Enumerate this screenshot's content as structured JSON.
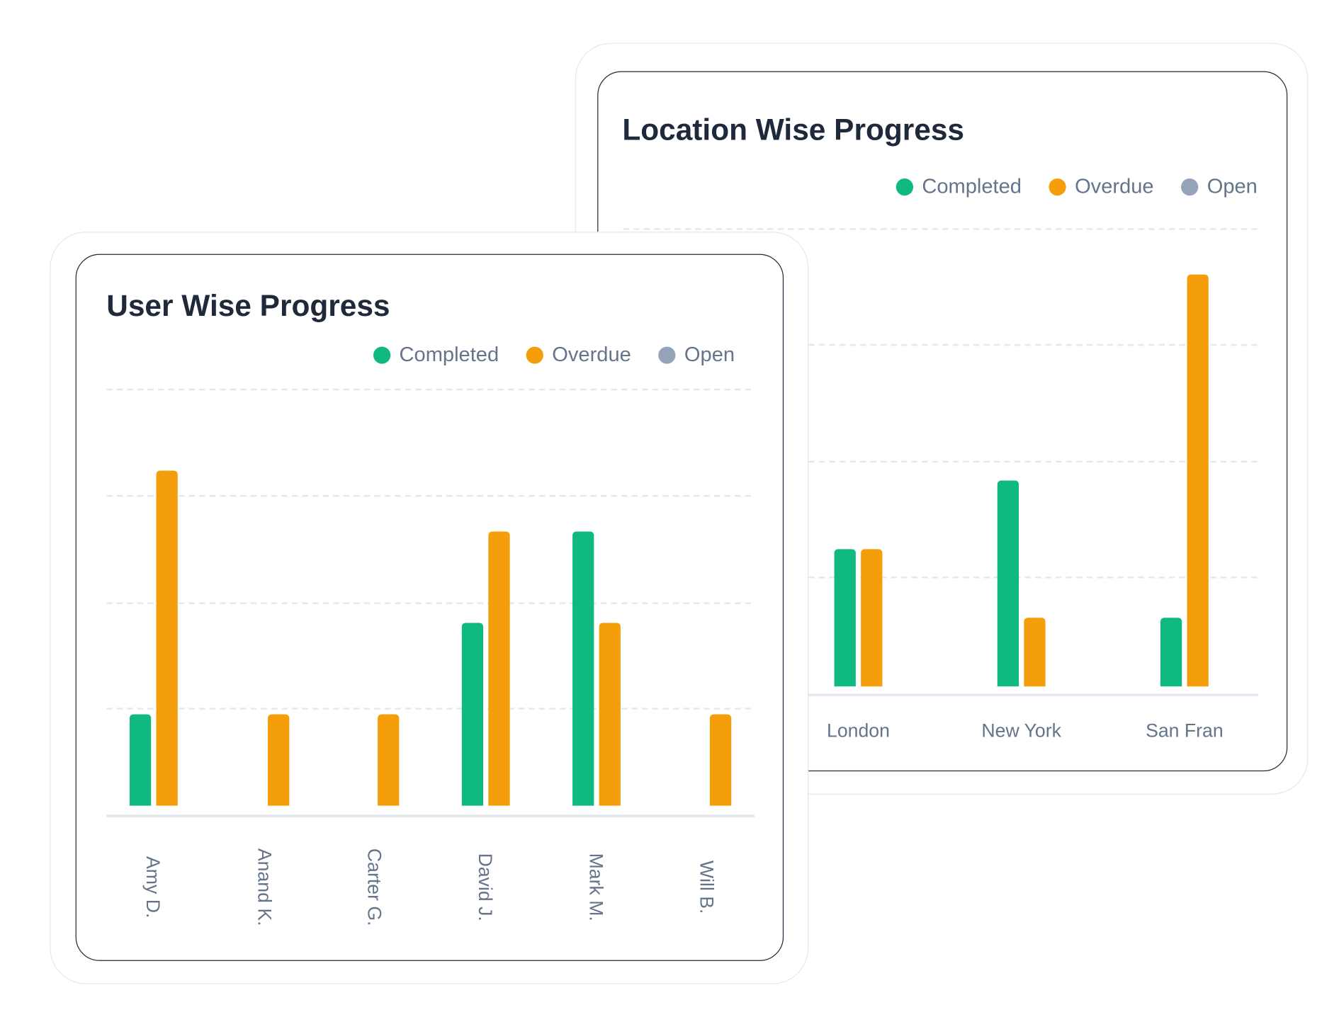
{
  "colors": {
    "completed": "#10b981",
    "overdue": "#f59e0b",
    "open": "#94a3b8",
    "grid": "#e2e8f0",
    "title": "#1e293b",
    "label": "#64748b"
  },
  "legend": [
    "Completed",
    "Overdue",
    "Open"
  ],
  "chart_data": [
    {
      "type": "bar",
      "title": "Location Wise Progress",
      "categories": [
        "London",
        "New York",
        "San Fran"
      ],
      "series": [
        {
          "name": "Completed",
          "values": [
            2,
            3,
            1
          ]
        },
        {
          "name": "Overdue",
          "values": [
            2,
            1,
            6
          ]
        },
        {
          "name": "Open",
          "values": [
            0,
            0,
            0
          ]
        }
      ],
      "grid": true,
      "legend_position": "top-right"
    },
    {
      "type": "bar",
      "title": "User Wise Progress",
      "categories": [
        "Amy D.",
        "Anand K.",
        "Carter G.",
        "David J.",
        "Mark M.",
        "Will B."
      ],
      "series": [
        {
          "name": "Completed",
          "values": [
            3,
            0,
            0,
            6,
            9,
            0
          ]
        },
        {
          "name": "Overdue",
          "values": [
            11,
            3,
            3,
            9,
            6,
            3
          ]
        },
        {
          "name": "Open",
          "values": [
            0,
            0,
            0,
            0,
            0,
            0
          ]
        }
      ],
      "grid": true,
      "legend_position": "top-right"
    }
  ]
}
